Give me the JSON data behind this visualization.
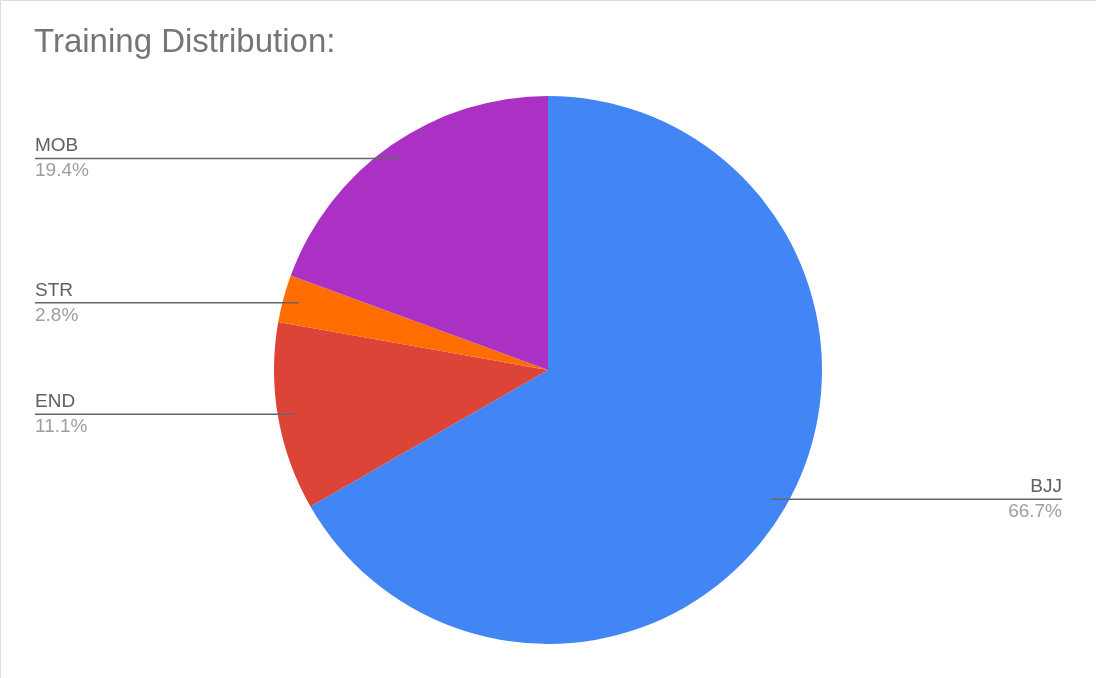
{
  "chart_data": {
    "type": "pie",
    "title": "Training Distribution:",
    "categories": [
      "BJJ",
      "END",
      "STR",
      "MOB"
    ],
    "values": [
      66.7,
      11.1,
      2.8,
      19.4
    ],
    "colors": [
      "#4285f4",
      "#db4437",
      "#ff6d01",
      "#ab30c4"
    ],
    "value_labels": [
      "66.7%",
      "11.1%",
      "2.8%",
      "19.4%"
    ]
  }
}
